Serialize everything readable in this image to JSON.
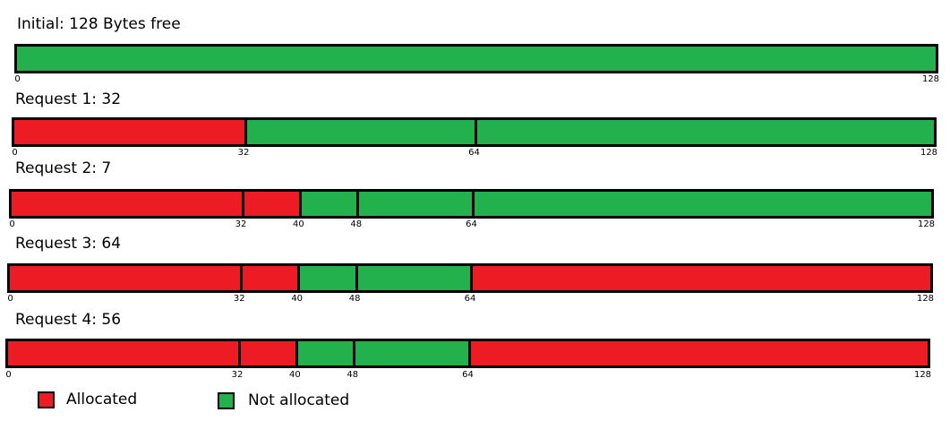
{
  "colors": {
    "allocated": "#ed1c24",
    "free": "#22b14c",
    "border": "#000000"
  },
  "legend": [
    {
      "label": "Allocated",
      "state": "allocated"
    },
    {
      "label": "Not allocated",
      "state": "free"
    }
  ],
  "rows": [
    {
      "title": "Initial: 128 Bytes free",
      "segments": [
        {
          "start": 0,
          "end": 128,
          "state": "free"
        }
      ],
      "ticks": [
        "0",
        "128"
      ]
    },
    {
      "title": "Request 1: 32",
      "segments": [
        {
          "start": 0,
          "end": 32,
          "state": "allocated"
        },
        {
          "start": 32,
          "end": 64,
          "state": "free"
        },
        {
          "start": 64,
          "end": 128,
          "state": "free"
        }
      ],
      "ticks": [
        "0",
        "32",
        "64",
        "128"
      ]
    },
    {
      "title": "Request 2: 7",
      "segments": [
        {
          "start": 0,
          "end": 32,
          "state": "allocated"
        },
        {
          "start": 32,
          "end": 40,
          "state": "allocated"
        },
        {
          "start": 40,
          "end": 48,
          "state": "free"
        },
        {
          "start": 48,
          "end": 64,
          "state": "free"
        },
        {
          "start": 64,
          "end": 128,
          "state": "free"
        }
      ],
      "ticks": [
        "0",
        "32",
        "40",
        "48",
        "64",
        "128"
      ]
    },
    {
      "title": "Request 3: 64",
      "segments": [
        {
          "start": 0,
          "end": 32,
          "state": "allocated"
        },
        {
          "start": 32,
          "end": 40,
          "state": "allocated"
        },
        {
          "start": 40,
          "end": 48,
          "state": "free"
        },
        {
          "start": 48,
          "end": 64,
          "state": "free"
        },
        {
          "start": 64,
          "end": 128,
          "state": "allocated"
        }
      ],
      "ticks": [
        "0",
        "32",
        "40",
        "48",
        "64",
        "128"
      ]
    },
    {
      "title": "Request 4: 56",
      "segments": [
        {
          "start": 0,
          "end": 32,
          "state": "allocated"
        },
        {
          "start": 32,
          "end": 40,
          "state": "allocated"
        },
        {
          "start": 40,
          "end": 48,
          "state": "free"
        },
        {
          "start": 48,
          "end": 64,
          "state": "free"
        },
        {
          "start": 64,
          "end": 128,
          "state": "allocated"
        }
      ],
      "ticks": [
        "0",
        "32",
        "40",
        "48",
        "64",
        "128"
      ]
    }
  ]
}
